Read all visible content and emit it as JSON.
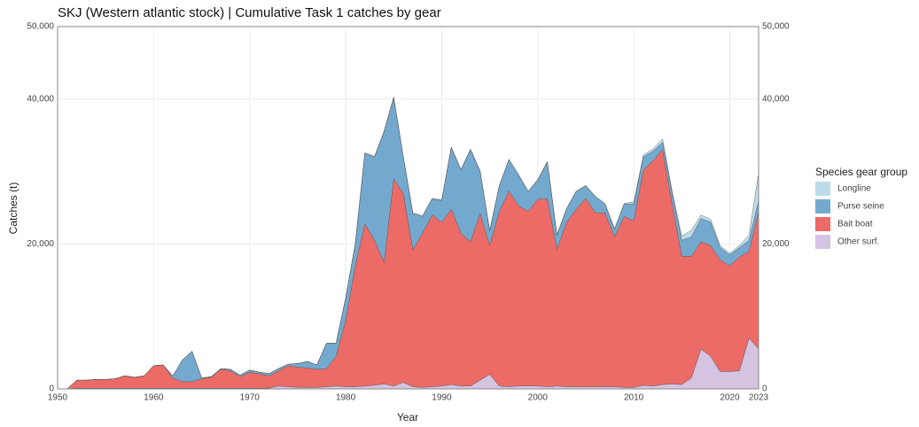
{
  "chart_data": {
    "type": "stacked_area",
    "title": "SKJ (Western atlantic stock) | Cumulative Task 1 catches by gear",
    "x_label": "Year",
    "y_label": "Catches (t)",
    "legend_title": "Species gear group",
    "x": [
      1950,
      1951,
      1952,
      1953,
      1954,
      1955,
      1956,
      1957,
      1958,
      1959,
      1960,
      1961,
      1962,
      1963,
      1964,
      1965,
      1966,
      1967,
      1968,
      1969,
      1970,
      1971,
      1972,
      1973,
      1974,
      1975,
      1976,
      1977,
      1978,
      1979,
      1980,
      1981,
      1982,
      1983,
      1984,
      1985,
      1986,
      1987,
      1988,
      1989,
      1990,
      1991,
      1992,
      1993,
      1994,
      1995,
      1996,
      1997,
      1998,
      1999,
      2000,
      2001,
      2002,
      2003,
      2004,
      2005,
      2006,
      2007,
      2008,
      2009,
      2010,
      2011,
      2012,
      2013,
      2014,
      2015,
      2016,
      2017,
      2018,
      2019,
      2020,
      2021,
      2022,
      2023
    ],
    "series": [
      {
        "name": "Other surf.",
        "color": "#d4c3e1",
        "values": [
          0,
          0,
          100,
          100,
          100,
          100,
          100,
          100,
          100,
          100,
          100,
          100,
          100,
          100,
          100,
          100,
          100,
          100,
          100,
          100,
          100,
          100,
          100,
          400,
          300,
          200,
          200,
          200,
          300,
          400,
          300,
          300,
          400,
          500,
          700,
          400,
          900,
          300,
          200,
          300,
          400,
          600,
          400,
          400,
          1200,
          2000,
          400,
          300,
          400,
          400,
          400,
          300,
          400,
          300,
          300,
          300,
          300,
          300,
          300,
          200,
          200,
          500,
          400,
          600,
          700,
          600,
          1500,
          5500,
          4500,
          2400,
          2400,
          2500,
          7000,
          5500
        ]
      },
      {
        "name": "Bait boat",
        "color": "#ec6b66",
        "values": [
          0,
          0,
          1100,
          1100,
          1200,
          1200,
          1300,
          1700,
          1500,
          1700,
          3100,
          3200,
          1400,
          900,
          900,
          1300,
          1500,
          2600,
          2400,
          1600,
          2200,
          2000,
          1700,
          2100,
          2900,
          2800,
          2700,
          2500,
          2500,
          4100,
          9200,
          16700,
          22400,
          20000,
          16800,
          28600,
          26100,
          18900,
          21300,
          23700,
          22600,
          24200,
          21100,
          19900,
          23000,
          17800,
          24100,
          27000,
          24900,
          24100,
          25800,
          25900,
          18900,
          22700,
          24500,
          26000,
          24000,
          24000,
          20700,
          23600,
          23000,
          29700,
          31100,
          32400,
          24800,
          17700,
          16800,
          14800,
          15300,
          15400,
          14600,
          15700,
          12000,
          19000
        ]
      },
      {
        "name": "Purse seine",
        "color": "#74a9cf",
        "values": [
          0,
          0,
          0,
          0,
          0,
          0,
          0,
          0,
          0,
          0,
          0,
          0,
          300,
          3000,
          4200,
          100,
          100,
          100,
          200,
          200,
          300,
          200,
          300,
          300,
          200,
          500,
          900,
          600,
          3500,
          1800,
          3000,
          3000,
          9700,
          11500,
          18000,
          11200,
          5000,
          5000,
          2300,
          2200,
          3000,
          8500,
          8700,
          12700,
          5800,
          2000,
          3500,
          4300,
          4200,
          2700,
          2600,
          5100,
          1900,
          1800,
          2400,
          1700,
          2200,
          1200,
          1000,
          1700,
          2300,
          1800,
          1300,
          1000,
          1500,
          2200,
          2700,
          3200,
          3200,
          1700,
          1500,
          1300,
          1500,
          1500
        ]
      },
      {
        "name": "Longline",
        "color": "#bcdcea",
        "values": [
          0,
          0,
          0,
          0,
          0,
          0,
          0,
          0,
          0,
          0,
          0,
          0,
          0,
          0,
          0,
          0,
          0,
          0,
          0,
          0,
          0,
          0,
          0,
          0,
          0,
          0,
          0,
          0,
          0,
          0,
          100,
          100,
          100,
          100,
          100,
          100,
          100,
          100,
          100,
          100,
          100,
          100,
          100,
          100,
          100,
          100,
          100,
          100,
          100,
          100,
          100,
          100,
          100,
          100,
          100,
          100,
          100,
          100,
          100,
          100,
          300,
          300,
          300,
          500,
          300,
          600,
          900,
          500,
          400,
          300,
          200,
          300,
          700,
          3800
        ]
      }
    ],
    "xlim": [
      1950,
      2023
    ],
    "xticks": [
      1950,
      1960,
      1970,
      1980,
      1990,
      2000,
      2010,
      2020,
      2023
    ],
    "ylim": [
      0,
      50000
    ],
    "yticks": [
      0,
      {
        "value": 20000,
        "label": "20,000"
      },
      {
        "value": 40000,
        "label": "40,000"
      },
      {
        "value": 50000,
        "label": "50,000"
      }
    ],
    "grid": true,
    "legend": "right"
  }
}
